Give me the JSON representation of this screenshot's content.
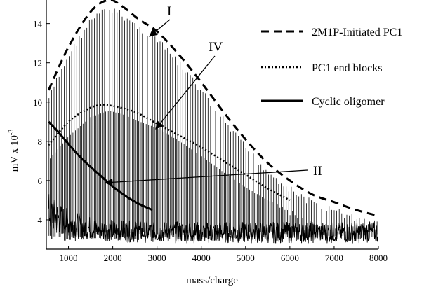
{
  "chart_data": {
    "type": "line",
    "xlabel": "mass/charge",
    "ylabel_base": "mV x 10",
    "ylabel_exp": "-3",
    "xlim": [
      500,
      8000
    ],
    "ylim": [
      2.5,
      15.2
    ],
    "x_ticks": [
      1000,
      2000,
      3000,
      4000,
      5000,
      6000,
      7000,
      8000
    ],
    "y_ticks": [
      4,
      6,
      8,
      10,
      12,
      14
    ],
    "grid": false,
    "legend_position": "top-right",
    "legend": [
      {
        "label": "2M1P-Initiated PC1",
        "style": "dashed"
      },
      {
        "label": "PC1 end blocks",
        "style": "dotted"
      },
      {
        "label": "Cyclic oligomer",
        "style": "solid"
      }
    ],
    "series": [
      {
        "name": "2M1P-Initiated PC1",
        "style": "dashed",
        "x": [
          550,
          1000,
          1500,
          1900,
          2200,
          2600,
          3000,
          3500,
          4000,
          4500,
          5000,
          5500,
          6000,
          6500,
          7000,
          7500,
          8000
        ],
        "y": [
          10.6,
          12.8,
          14.6,
          15.2,
          14.9,
          14.2,
          13.6,
          12.4,
          11.0,
          9.5,
          8.1,
          6.9,
          6.0,
          5.3,
          4.9,
          4.5,
          4.2
        ]
      },
      {
        "name": "PC1 end blocks",
        "style": "dotted",
        "x": [
          550,
          1000,
          1400,
          1700,
          2000,
          2500,
          3000,
          3500,
          4000,
          4500,
          5000,
          5500,
          6000
        ],
        "y": [
          7.8,
          9.0,
          9.6,
          9.85,
          9.8,
          9.5,
          8.9,
          8.3,
          7.7,
          7.0,
          6.3,
          5.6,
          5.0
        ]
      },
      {
        "name": "Cyclic oligomer",
        "style": "solid",
        "x": [
          550,
          800,
          1100,
          1400,
          1700,
          2000,
          2300,
          2600,
          2900
        ],
        "y": [
          9.0,
          8.4,
          7.6,
          6.9,
          6.3,
          5.7,
          5.2,
          4.8,
          4.5
        ]
      }
    ],
    "annotations": [
      {
        "label": "I",
        "target_x": 2350,
        "target_y": 14.9
      },
      {
        "label": "IV",
        "target_x": 2700,
        "target_y": 9.6
      },
      {
        "label": "II",
        "target_x": 1350,
        "target_y": 6.4
      }
    ]
  }
}
